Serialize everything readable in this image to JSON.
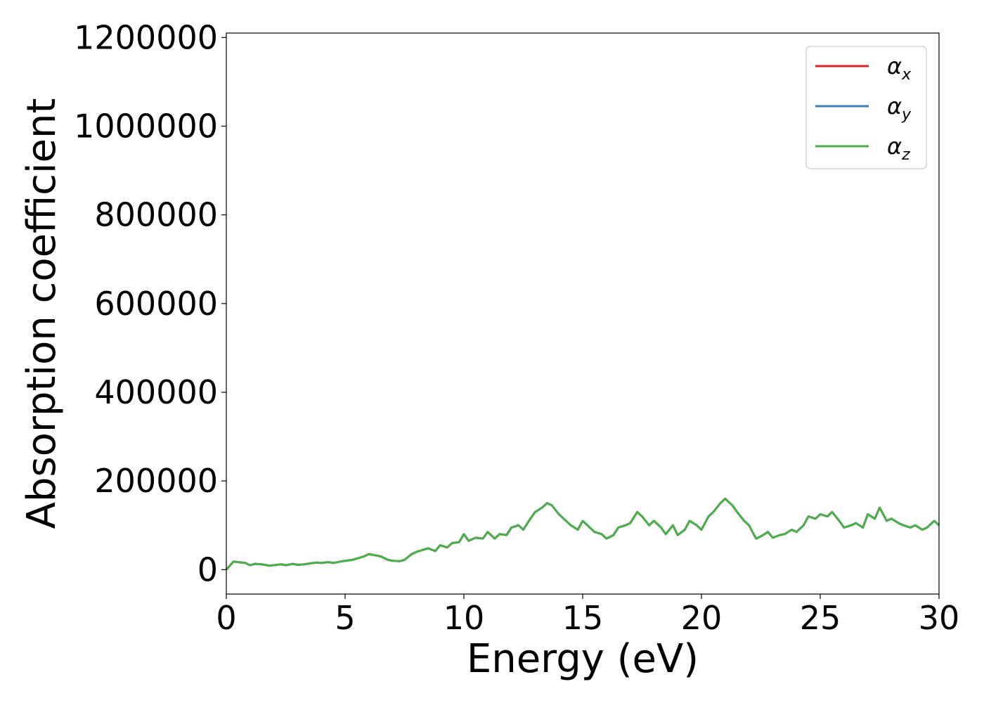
{
  "chart_data": {
    "type": "line",
    "xlabel": "Energy (eV)",
    "ylabel": "Absorption coefficient",
    "xlim": [
      0,
      30
    ],
    "ylim": [
      -55000,
      1210000
    ],
    "xticks": [
      "0",
      "5",
      "10",
      "15",
      "20",
      "25",
      "30"
    ],
    "yticks": [
      "0",
      "200000",
      "400000",
      "600000",
      "800000",
      "1000000",
      "1200000"
    ],
    "grid": false,
    "legend_position": "top-right",
    "legend": [
      {
        "symbol": "α",
        "subscript": "x",
        "color": "#d62728"
      },
      {
        "symbol": "α",
        "subscript": "y",
        "color": "#377eb8"
      },
      {
        "symbol": "α",
        "subscript": "z",
        "color": "#4daf4a"
      }
    ],
    "x": [
      0,
      0.3,
      0.5,
      0.8,
      1.0,
      1.2,
      1.5,
      1.8,
      2.0,
      2.3,
      2.5,
      2.8,
      3.0,
      3.3,
      3.5,
      3.8,
      4.0,
      4.3,
      4.5,
      4.8,
      5.0,
      5.3,
      5.5,
      5.8,
      6.0,
      6.2,
      6.5,
      6.8,
      7.0,
      7.3,
      7.5,
      7.8,
      8.0,
      8.3,
      8.5,
      8.8,
      9.0,
      9.3,
      9.5,
      9.8,
      10.0,
      10.2,
      10.5,
      10.8,
      11.0,
      11.3,
      11.5,
      11.8,
      12.0,
      12.3,
      12.5,
      12.8,
      13.0,
      13.3,
      13.5,
      13.7,
      14.0,
      14.3,
      14.5,
      14.8,
      15.0,
      15.3,
      15.5,
      15.8,
      16.0,
      16.3,
      16.5,
      16.8,
      17.0,
      17.3,
      17.5,
      17.8,
      18.0,
      18.3,
      18.5,
      18.8,
      19.0,
      19.3,
      19.5,
      19.8,
      20.0,
      20.3,
      20.5,
      20.8,
      21.0,
      21.3,
      21.5,
      21.8,
      22.0,
      22.3,
      22.5,
      22.8,
      23.0,
      23.3,
      23.5,
      23.8,
      24.0,
      24.3,
      24.5,
      24.8,
      25.0,
      25.3,
      25.5,
      25.8,
      26.0,
      26.3,
      26.5,
      26.8,
      27.0,
      27.3,
      27.5,
      27.8,
      28.0,
      28.3,
      28.5,
      28.8,
      29.0,
      29.3,
      29.5,
      29.8,
      30.0
    ],
    "series": [
      {
        "values": [
          0,
          18000,
          17000,
          15000,
          10000,
          13000,
          12000,
          9000,
          10000,
          12000,
          10000,
          13000,
          11000,
          12000,
          14000,
          16000,
          15000,
          17000,
          15000,
          18000,
          20000,
          22000,
          25000,
          30000,
          35000,
          33000,
          30000,
          22000,
          20000,
          19000,
          22000,
          35000,
          40000,
          45000,
          48000,
          42000,
          55000,
          50000,
          60000,
          62000,
          80000,
          65000,
          72000,
          70000,
          85000,
          70000,
          80000,
          78000,
          95000,
          100000,
          90000,
          115000,
          130000,
          140000,
          150000,
          145000,
          125000,
          110000,
          100000,
          90000,
          110000,
          95000,
          85000,
          80000,
          70000,
          78000,
          95000,
          100000,
          105000,
          130000,
          120000,
          100000,
          110000,
          95000,
          80000,
          100000,
          78000,
          90000,
          110000,
          100000,
          90000,
          120000,
          130000,
          150000,
          160000,
          145000,
          130000,
          110000,
          100000,
          70000,
          75000,
          85000,
          72000,
          78000,
          80000,
          90000,
          85000,
          100000,
          120000,
          115000,
          125000,
          120000,
          130000,
          110000,
          95000,
          100000,
          105000,
          95000,
          125000,
          115000,
          140000,
          110000,
          115000,
          105000,
          100000,
          95000,
          100000,
          90000,
          95000,
          110000,
          100000
        ]
      },
      {
        "values": [
          0,
          18000,
          17000,
          15000,
          10000,
          13000,
          12000,
          9000,
          10000,
          12000,
          10000,
          13000,
          11000,
          12000,
          14000,
          16000,
          15000,
          17000,
          15000,
          18000,
          20000,
          22000,
          25000,
          30000,
          35000,
          33000,
          30000,
          22000,
          20000,
          19000,
          22000,
          35000,
          40000,
          45000,
          48000,
          42000,
          55000,
          50000,
          60000,
          62000,
          80000,
          65000,
          72000,
          70000,
          85000,
          70000,
          80000,
          78000,
          95000,
          100000,
          90000,
          115000,
          130000,
          140000,
          150000,
          145000,
          125000,
          110000,
          100000,
          90000,
          110000,
          95000,
          85000,
          80000,
          70000,
          78000,
          95000,
          100000,
          105000,
          130000,
          120000,
          100000,
          110000,
          95000,
          80000,
          100000,
          78000,
          90000,
          110000,
          100000,
          90000,
          120000,
          130000,
          150000,
          160000,
          145000,
          130000,
          110000,
          100000,
          70000,
          75000,
          85000,
          72000,
          78000,
          80000,
          90000,
          85000,
          100000,
          120000,
          115000,
          125000,
          120000,
          130000,
          110000,
          95000,
          100000,
          105000,
          95000,
          125000,
          115000,
          140000,
          110000,
          115000,
          105000,
          100000,
          95000,
          100000,
          90000,
          95000,
          110000,
          100000
        ]
      },
      {
        "values": [
          0,
          18000,
          17000,
          15000,
          10000,
          13000,
          12000,
          9000,
          10000,
          12000,
          10000,
          13000,
          11000,
          12000,
          14000,
          16000,
          15000,
          17000,
          15000,
          18000,
          20000,
          22000,
          25000,
          30000,
          35000,
          33000,
          30000,
          22000,
          20000,
          19000,
          22000,
          35000,
          40000,
          45000,
          48000,
          42000,
          55000,
          50000,
          60000,
          62000,
          80000,
          65000,
          72000,
          70000,
          85000,
          70000,
          80000,
          78000,
          95000,
          100000,
          90000,
          115000,
          130000,
          140000,
          150000,
          145000,
          125000,
          110000,
          100000,
          90000,
          110000,
          95000,
          85000,
          80000,
          70000,
          78000,
          95000,
          100000,
          105000,
          130000,
          120000,
          100000,
          110000,
          95000,
          80000,
          100000,
          78000,
          90000,
          110000,
          100000,
          90000,
          120000,
          130000,
          150000,
          160000,
          145000,
          130000,
          110000,
          100000,
          70000,
          75000,
          85000,
          72000,
          78000,
          80000,
          90000,
          85000,
          100000,
          120000,
          115000,
          125000,
          120000,
          130000,
          110000,
          95000,
          100000,
          105000,
          95000,
          125000,
          115000,
          140000,
          110000,
          115000,
          105000,
          100000,
          95000,
          100000,
          90000,
          95000,
          110000,
          100000
        ]
      }
    ]
  }
}
